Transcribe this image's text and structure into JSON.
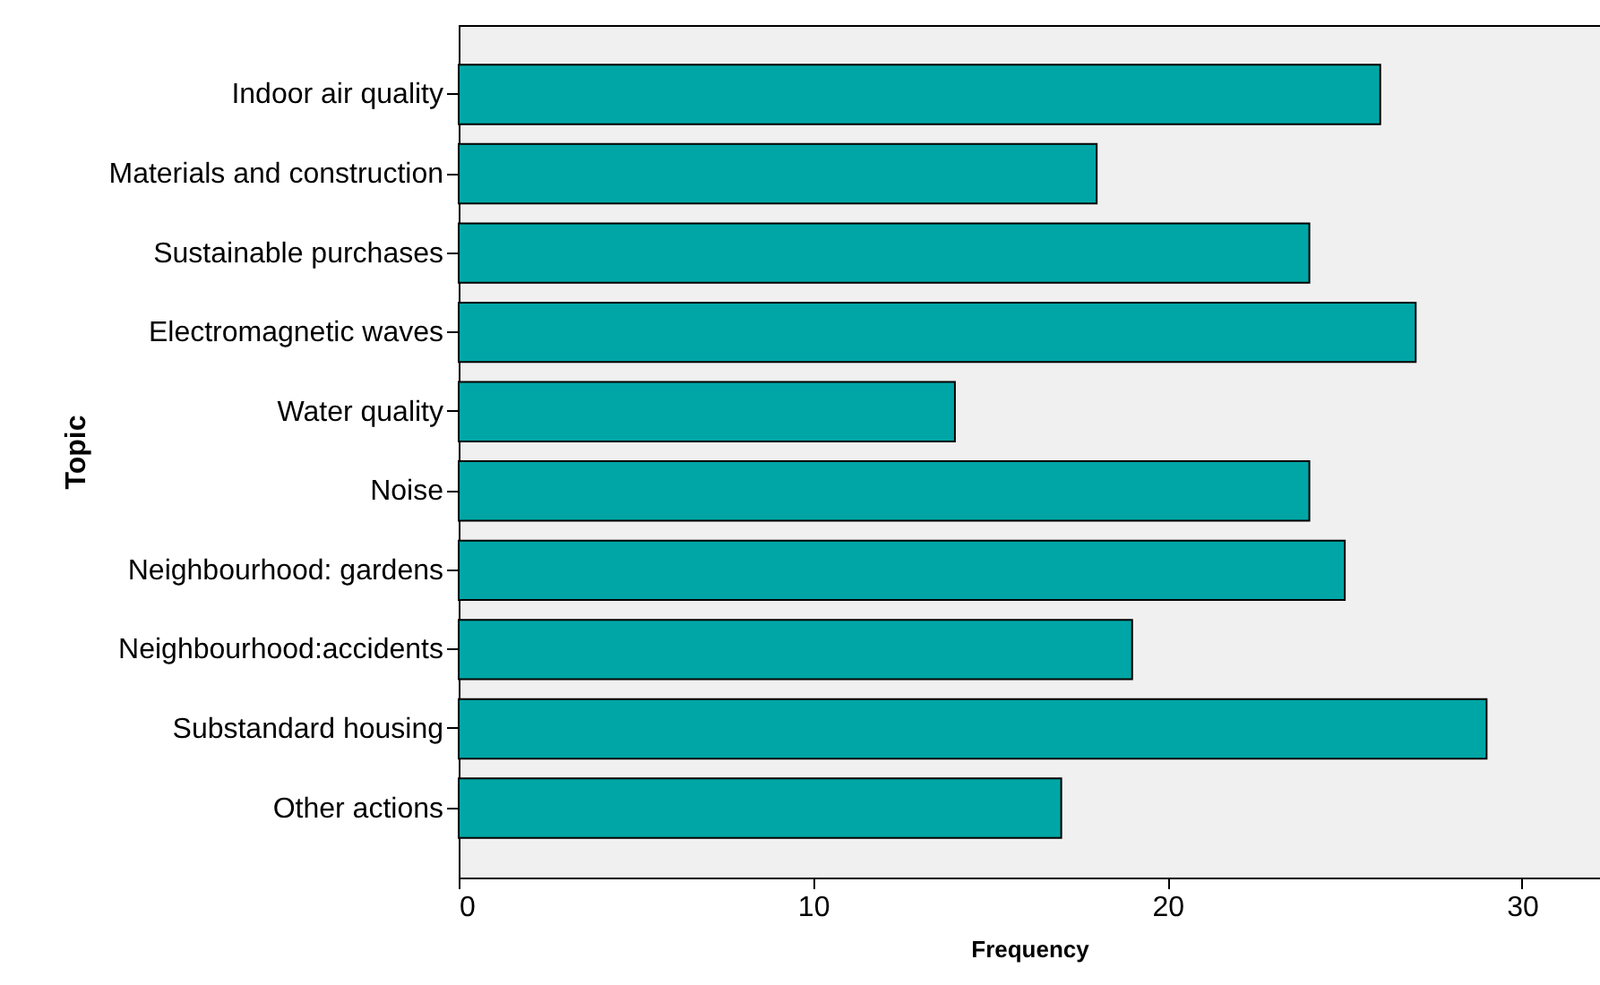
{
  "chart_data": {
    "type": "bar",
    "orientation": "horizontal",
    "xlabel": "Frequency",
    "ylabel": "Topic",
    "categories": [
      "Indoor air quality",
      "Materials and construction",
      "Sustainable purchases",
      "Electromagnetic waves",
      "Water quality",
      "Noise",
      "Neighbourhood: gardens",
      "Neighbourhood:accidents",
      "Substandard housing",
      "Other actions"
    ],
    "values": [
      26,
      18,
      24,
      27,
      14,
      24,
      25,
      19,
      29,
      17
    ],
    "color": "#00a6a6",
    "xlim": [
      0,
      32.2
    ],
    "xticks": [
      0,
      10,
      20,
      30
    ],
    "grid": false
  }
}
